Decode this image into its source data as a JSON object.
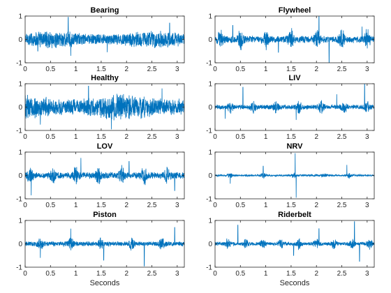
{
  "chart_data": {
    "type": "line",
    "layout": "4x2 grid",
    "color": "#0072BD",
    "xlim": [
      0,
      3.14
    ],
    "ylim": [
      -1,
      1
    ],
    "xticks": [
      0,
      0.5,
      1,
      1.5,
      2,
      2.5,
      3
    ],
    "xtick_labels": [
      "0",
      "0.5",
      "1",
      "1.5",
      "2",
      "2.5",
      "3"
    ],
    "yticks": [
      -1,
      0,
      1
    ],
    "ytick_labels": [
      "-1",
      "0",
      "1"
    ],
    "xlabel": "Seconds",
    "grid": false,
    "panels": [
      {
        "title": "Bearing",
        "amplitude": 0.32,
        "spikes": [
          [
            0.85,
            0.95
          ],
          [
            0.9,
            -0.7
          ],
          [
            1.62,
            -0.55
          ],
          [
            2.85,
            0.7
          ],
          [
            0.25,
            -0.5
          ]
        ],
        "bursts": []
      },
      {
        "title": "Flywheel",
        "amplitude": 0.3,
        "spikes": [
          [
            2.05,
            0.98
          ],
          [
            2.25,
            -1.0
          ],
          [
            0.35,
            0.6
          ],
          [
            1.25,
            -0.55
          ],
          [
            2.9,
            0.55
          ]
        ],
        "bursts": [
          0.1,
          0.5,
          1.0,
          1.5,
          2.0,
          2.5,
          3.0
        ]
      },
      {
        "title": "Healthy",
        "amplitude": 0.48,
        "spikes": [
          [
            1.25,
            0.9
          ],
          [
            1.7,
            -0.95
          ],
          [
            2.7,
            0.8
          ],
          [
            0.3,
            -0.75
          ]
        ],
        "bursts": []
      },
      {
        "title": "LIV",
        "amplitude": 0.2,
        "spikes": [
          [
            0.55,
            0.85
          ],
          [
            2.95,
            0.98
          ],
          [
            1.6,
            -0.55
          ],
          [
            0.2,
            -0.5
          ],
          [
            2.4,
            0.55
          ]
        ],
        "bursts": [
          0.3,
          0.75,
          1.2,
          1.65,
          2.1,
          2.55,
          3.0
        ]
      },
      {
        "title": "LOV",
        "amplitude": 0.28,
        "spikes": [
          [
            0.12,
            -0.85
          ],
          [
            1.1,
            0.75
          ],
          [
            2.95,
            -0.65
          ],
          [
            2.05,
            0.6
          ]
        ],
        "bursts": [
          0.1,
          0.55,
          1.0,
          1.45,
          1.9,
          2.35,
          2.8
        ]
      },
      {
        "title": "NRV",
        "amplitude": 0.08,
        "spikes": [
          [
            1.58,
            0.95
          ],
          [
            1.6,
            -0.95
          ],
          [
            0.95,
            0.4
          ],
          [
            2.6,
            0.45
          ],
          [
            0.3,
            -0.35
          ]
        ],
        "bursts": [
          0.3,
          0.95,
          1.55,
          2.15,
          2.65
        ]
      },
      {
        "title": "Piston",
        "amplitude": 0.2,
        "spikes": [
          [
            0.9,
            0.65
          ],
          [
            2.35,
            -0.95
          ],
          [
            1.55,
            -0.7
          ],
          [
            2.95,
            0.7
          ],
          [
            0.3,
            -0.6
          ]
        ],
        "bursts": [
          0.3,
          0.9,
          1.5,
          2.1,
          2.7
        ]
      },
      {
        "title": "Riderbelt",
        "amplitude": 0.15,
        "spikes": [
          [
            2.75,
            0.95
          ],
          [
            2.85,
            -0.75
          ],
          [
            0.45,
            0.8
          ],
          [
            1.55,
            -0.5
          ],
          [
            2.05,
            0.65
          ]
        ],
        "bursts": [
          0.25,
          0.6,
          0.95,
          1.3,
          1.65,
          2.0,
          2.35,
          2.7,
          3.05
        ]
      }
    ]
  }
}
